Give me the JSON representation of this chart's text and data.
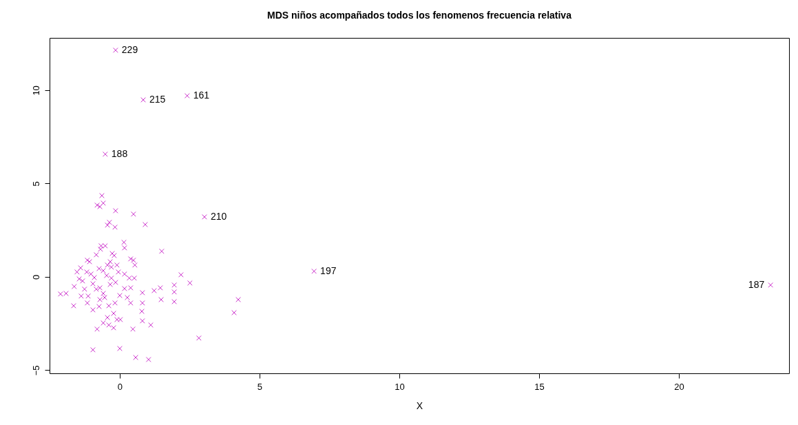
{
  "chart_data": {
    "type": "scatter",
    "title": "MDS niños acompañados  todos los fenomenos frecuencia relativa",
    "xlabel": "X",
    "marker": "cross",
    "grid": false,
    "xlim": [
      -2.51,
      23.94
    ],
    "ylim": [
      -5.17,
      12.8
    ],
    "xticks": [
      0,
      5,
      10,
      15,
      20
    ],
    "yticks": [
      -5,
      0,
      5,
      10
    ],
    "series": [
      {
        "color": "#cc33cc",
        "x": [
          -0.15,
          0.84,
          2.41,
          -0.52,
          3.03,
          6.95,
          23.28,
          -0.64,
          -0.59,
          -0.71,
          -0.81,
          -0.15,
          0.49,
          -0.37,
          -0.44,
          -0.17,
          0.91,
          -0.67,
          -0.52,
          0.15,
          0.17,
          -0.27,
          -0.2,
          0.39,
          0.49,
          0.54,
          1.5,
          2.19,
          2.51,
          1.45,
          1.48,
          1.95,
          1.95,
          1.95,
          1.23,
          0.81,
          0.81,
          0.79,
          0.81,
          1.11,
          0.47,
          0,
          0.57,
          1.03,
          -0.96,
          2.83,
          4.24,
          4.09,
          -2.12,
          -1.92,
          -1.63,
          -1.65,
          -0.81,
          -0.59,
          -0.44,
          -0.39,
          -0.22,
          -0.1,
          0.02,
          -1.4,
          -1.16,
          -1.08,
          -0.74,
          -0.59,
          -0.91,
          -1.33,
          -1.26,
          -1.13,
          -1.16,
          -0.74,
          -0.54,
          -0.39,
          -0.17,
          0,
          0.17,
          0.39,
          0.17,
          -0.05,
          -0.3,
          -0.34,
          0.34,
          0.52,
          -0.15,
          -0.84,
          -1.53,
          -1.45,
          -1.38,
          -0.96,
          -0.71,
          -0.59,
          -0.44,
          -0.3,
          0.27,
          0.39,
          -0.69,
          -0.34,
          -0.1,
          -0.84,
          -1.03,
          -0.47,
          -0.71,
          -0.96,
          -0.22,
          -1.18
        ],
        "values": [
          12.14,
          9.48,
          9.7,
          6.57,
          3.21,
          0.3,
          -0.44,
          4.35,
          3.95,
          3.76,
          3.84,
          3.54,
          3.36,
          2.92,
          2.77,
          2.66,
          2.8,
          1.66,
          1.66,
          1.85,
          1.55,
          1.25,
          1.14,
          0.96,
          0.89,
          0.63,
          1.37,
          0.11,
          -0.33,
          -0.59,
          -1.22,
          -0.44,
          -0.81,
          -1.33,
          -0.74,
          -0.85,
          -1.4,
          -1.85,
          -2.36,
          -2.58,
          -2.8,
          -3.84,
          -4.32,
          -4.43,
          -3.91,
          -3.28,
          -1.22,
          -1.92,
          -0.92,
          -0.89,
          -0.52,
          -1.55,
          -2.8,
          -2.47,
          -2.18,
          -2.58,
          -2.73,
          -2.29,
          -2.29,
          0.48,
          0.89,
          0.81,
          0.44,
          0.33,
          -0.04,
          -0.22,
          -0.66,
          -1.03,
          -1.4,
          -1.59,
          -1.11,
          -1.55,
          -1.4,
          -1,
          -0.63,
          -0.59,
          0.15,
          0.26,
          -0.07,
          -0.41,
          -0.07,
          -0.07,
          -0.3,
          -0.66,
          0.26,
          -0.11,
          -1.03,
          -0.37,
          -0.59,
          -0.89,
          0.63,
          0.52,
          -1.11,
          -1.4,
          1.48,
          0.81,
          0.63,
          1.18,
          0.15,
          0.07,
          -1.22,
          -1.77,
          -1.96,
          0.26
        ]
      }
    ],
    "annotations": [
      {
        "text": "229",
        "x": -0.15,
        "y": 12.14
      },
      {
        "text": "215",
        "x": 0.84,
        "y": 9.48
      },
      {
        "text": "161",
        "x": 2.41,
        "y": 9.7
      },
      {
        "text": "188",
        "x": -0.52,
        "y": 6.57
      },
      {
        "text": "210",
        "x": 3.03,
        "y": 3.21
      },
      {
        "text": "197",
        "x": 6.95,
        "y": 0.3
      },
      {
        "text": "187",
        "x": 23.28,
        "y": -0.44
      }
    ]
  }
}
